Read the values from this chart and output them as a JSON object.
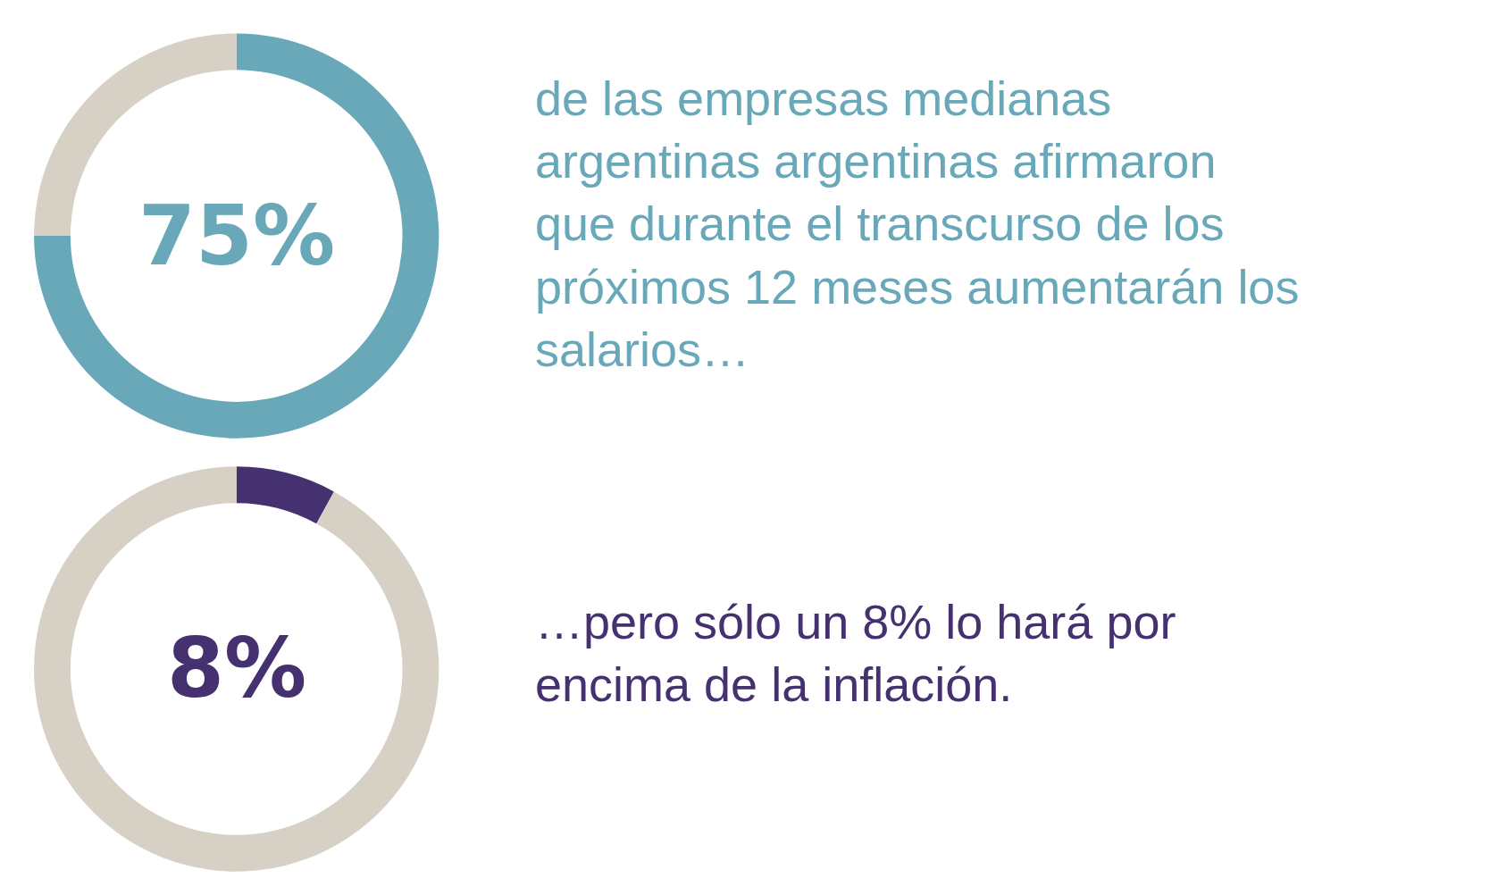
{
  "chart_data": [
    {
      "type": "donut",
      "categories": [
        null,
        null
      ],
      "values": [
        75,
        25
      ],
      "colors": [
        "#68a8b8",
        "#d6d0c5"
      ],
      "legend": false,
      "annotations": [
        "75%",
        "de las empresas medianas argentinas argentinas afirmaron que durante el transcurso de los próximos 12 meses aumentarán los salarios…"
      ]
    },
    {
      "type": "donut",
      "categories": [
        null,
        null
      ],
      "values": [
        8,
        92
      ],
      "colors": [
        "#45316f",
        "#d6d0c5"
      ],
      "legend": false,
      "annotations": [
        "8%",
        "…pero sólo un 8% lo hará por encima de la inflación."
      ]
    }
  ]
}
